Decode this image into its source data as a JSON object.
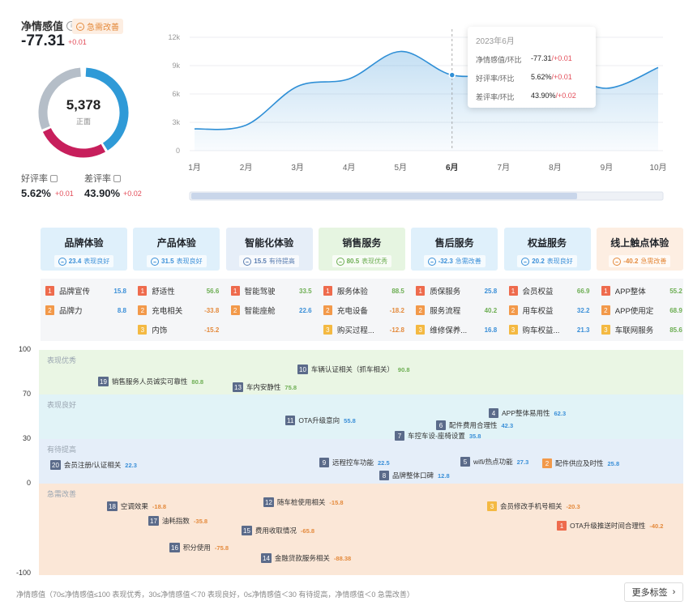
{
  "kpi": {
    "title": "净情感值",
    "badge": "急需改善",
    "value": "-77.31",
    "delta": "+0.01",
    "donut_total": "5,378",
    "donut_label": "正面",
    "donut_segments": [
      {
        "name": "正面",
        "fraction": 0.4,
        "color": "#2f9ad7"
      },
      {
        "name": "负面",
        "fraction": 0.26,
        "color": "#c71f5c"
      },
      {
        "name": "中性",
        "fraction": 0.3,
        "color": "#b5bec8"
      }
    ],
    "good_rate_label": "好评率",
    "good_rate": "5.62%",
    "good_rate_delta": "+0.01",
    "bad_rate_label": "差评率",
    "bad_rate": "43.90%",
    "bad_rate_delta": "+0.02"
  },
  "chart_data": {
    "type": "area",
    "x": [
      "1月",
      "2月",
      "3月",
      "4月",
      "5月",
      "6月",
      "7月",
      "8月",
      "9月",
      "10月"
    ],
    "y_ticks": [
      "0",
      "3k",
      "6k",
      "9k",
      "12k"
    ],
    "ylim": [
      0,
      12000
    ],
    "series": [
      {
        "values": [
          2300,
          2700,
          6800,
          7600,
          10500,
          8000,
          8200,
          8500,
          6600,
          8800
        ]
      }
    ],
    "highlight_index": 5
  },
  "tooltip": {
    "title": "2023年6月",
    "rows": [
      {
        "k": "净情感值/环比",
        "v": "-77.31",
        "d": "/+0.01"
      },
      {
        "k": "好评率/环比",
        "v": "5.62%",
        "d": "/+0.01"
      },
      {
        "k": "差评率/环比",
        "v": "43.90%",
        "d": "/+0.02"
      }
    ]
  },
  "categories": [
    {
      "title": "品牌体验",
      "score": "23.4",
      "status": "表现良好",
      "bg": "#dff0fb",
      "fg": "#3a8fd8"
    },
    {
      "title": "产品体验",
      "score": "31.5",
      "status": "表现良好",
      "bg": "#dff0fb",
      "fg": "#3a8fd8"
    },
    {
      "title": "智能化体验",
      "score": "15.5",
      "status": "有待提高",
      "bg": "#e6eef8",
      "fg": "#5a7db0"
    },
    {
      "title": "销售服务",
      "score": "80.5",
      "status": "表现优秀",
      "bg": "#e6f5e1",
      "fg": "#6dae53"
    },
    {
      "title": "售后服务",
      "score": "-32.3",
      "status": "急需改善",
      "bg": "#dff0fb",
      "fg": "#3a8fd8"
    },
    {
      "title": "权益服务",
      "score": "20.2",
      "status": "表现良好",
      "bg": "#dff0fb",
      "fg": "#3a8fd8"
    },
    {
      "title": "线上触点体验",
      "score": "-40.2",
      "status": "急需改善",
      "bg": "#fdeee2",
      "fg": "#e48a3c"
    }
  ],
  "sub_items": [
    [
      {
        "rank": "1",
        "name": "品牌宣传",
        "val": "15.8",
        "cls": "mid"
      },
      {
        "rank": "2",
        "name": "品牌力",
        "val": "8.8",
        "cls": "mid"
      }
    ],
    [
      {
        "rank": "1",
        "name": "舒适性",
        "val": "56.6",
        "cls": "pos"
      },
      {
        "rank": "2",
        "name": "充电相关",
        "val": "-33.8",
        "cls": "neg"
      },
      {
        "rank": "3",
        "name": "内饰",
        "val": "-15.2",
        "cls": "neg"
      }
    ],
    [
      {
        "rank": "1",
        "name": "智能驾驶",
        "val": "33.5",
        "cls": "pos"
      },
      {
        "rank": "2",
        "name": "智能座舱",
        "val": "22.6",
        "cls": "mid"
      }
    ],
    [
      {
        "rank": "1",
        "name": "服务体验",
        "val": "88.5",
        "cls": "pos"
      },
      {
        "rank": "2",
        "name": "充电设备",
        "val": "-18.2",
        "cls": "neg"
      },
      {
        "rank": "3",
        "name": "购买过程...",
        "val": "-12.8",
        "cls": "neg"
      }
    ],
    [
      {
        "rank": "1",
        "name": "质保服务",
        "val": "25.8",
        "cls": "mid"
      },
      {
        "rank": "2",
        "name": "服务流程",
        "val": "40.2",
        "cls": "pos"
      },
      {
        "rank": "3",
        "name": "维修保养...",
        "val": "16.8",
        "cls": "mid"
      }
    ],
    [
      {
        "rank": "1",
        "name": "会员权益",
        "val": "66.9",
        "cls": "pos"
      },
      {
        "rank": "2",
        "name": "用车权益",
        "val": "32.2",
        "cls": "mid"
      },
      {
        "rank": "3",
        "name": "购车权益...",
        "val": "21.3",
        "cls": "mid"
      }
    ],
    [
      {
        "rank": "1",
        "name": "APP整体",
        "val": "55.2",
        "cls": "pos"
      },
      {
        "rank": "2",
        "name": "APP使用定",
        "val": "68.9",
        "cls": "pos"
      },
      {
        "rank": "3",
        "name": "车联网服务",
        "val": "85.6",
        "cls": "pos"
      }
    ]
  ],
  "bands": [
    {
      "label": "表现优秀",
      "color": "#eaf6e4"
    },
    {
      "label": "表现良好",
      "color": "#e1f3f7"
    },
    {
      "label": "有待提高",
      "color": "#e5eef9"
    },
    {
      "label": "急需改善",
      "color": "#fbe7d7"
    }
  ],
  "axis_labels": [
    "100",
    "70",
    "30",
    "0",
    "-100"
  ],
  "points": [
    {
      "num": "10",
      "name": "车辆认证相关（抓车相关）",
      "val": "90.8",
      "cls": "pos",
      "nc": ""
    },
    {
      "num": "19",
      "name": "销售服务人员诚实可靠性",
      "val": "80.8",
      "cls": "pos",
      "nc": ""
    },
    {
      "num": "13",
      "name": "车内安静性",
      "val": "75.8",
      "cls": "pos",
      "nc": ""
    },
    {
      "num": "4",
      "name": "APP整体易用性",
      "val": "62.3",
      "cls": "mid",
      "nc": ""
    },
    {
      "num": "11",
      "name": "OTA升级意向",
      "val": "55.8",
      "cls": "mid",
      "nc": ""
    },
    {
      "num": "6",
      "name": "配件费用合理性",
      "val": "42.3",
      "cls": "mid",
      "nc": ""
    },
    {
      "num": "7",
      "name": "车控车设-座椅设置",
      "val": "35.8",
      "cls": "mid",
      "nc": ""
    },
    {
      "num": "20",
      "name": "会员注册/认证相关",
      "val": "22.3",
      "cls": "mid",
      "nc": ""
    },
    {
      "num": "9",
      "name": "远程控车功能",
      "val": "22.5",
      "cls": "mid",
      "nc": ""
    },
    {
      "num": "5",
      "name": "wifi/热点功能",
      "val": "27.3",
      "cls": "mid",
      "nc": ""
    },
    {
      "num": "2",
      "name": "配件供应及时性",
      "val": "25.8",
      "cls": "mid",
      "nc": "warn"
    },
    {
      "num": "8",
      "name": "品牌整体口碑",
      "val": "12.8",
      "cls": "mid",
      "nc": ""
    },
    {
      "num": "12",
      "name": "随车桩使用相关",
      "val": "-15.8",
      "cls": "neg",
      "nc": ""
    },
    {
      "num": "18",
      "name": "空调效果",
      "val": "-18.8",
      "cls": "neg",
      "nc": ""
    },
    {
      "num": "3",
      "name": "会员修改手机号相关",
      "val": "-20.3",
      "cls": "neg",
      "nc": "gold"
    },
    {
      "num": "17",
      "name": "油耗指数",
      "val": "-35.8",
      "cls": "neg",
      "nc": ""
    },
    {
      "num": "1",
      "name": "OTA升级推送时间合理性",
      "val": "-40.2",
      "cls": "neg",
      "nc": "hot"
    },
    {
      "num": "15",
      "name": "费用收取情况",
      "val": "-65.8",
      "cls": "neg",
      "nc": ""
    },
    {
      "num": "16",
      "name": "积分使用",
      "val": "-75.8",
      "cls": "neg",
      "nc": ""
    },
    {
      "num": "14",
      "name": "金融贷款服务相关",
      "val": "-88.38",
      "cls": "neg",
      "nc": ""
    }
  ],
  "footer": {
    "note": "净情感值（70≤净情感值≤100 表现优秀，30≤净情感值＜70 表现良好，0≤净情感值＜30 有待提高，净情感值＜0 急需改善）",
    "more": "更多标签"
  }
}
